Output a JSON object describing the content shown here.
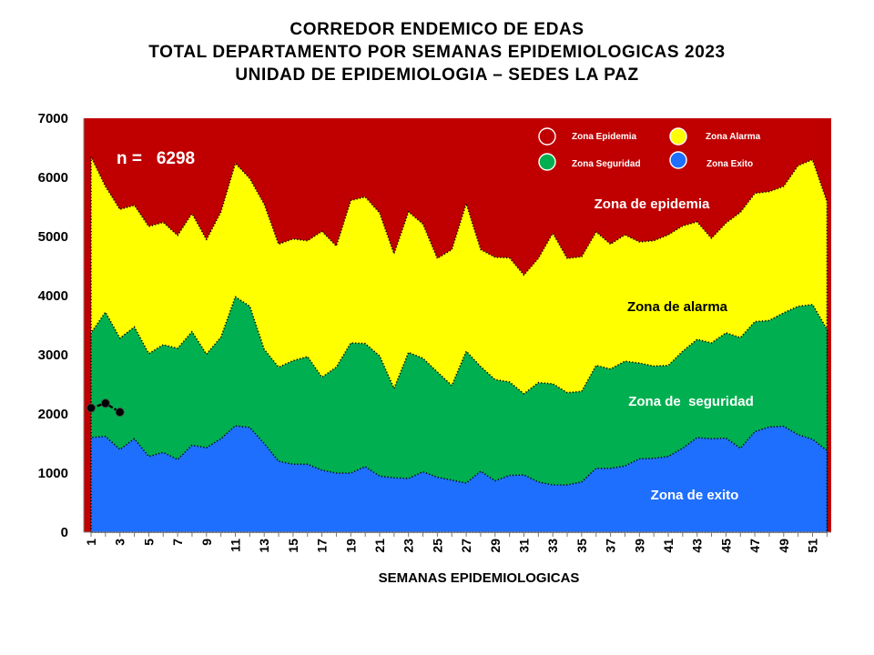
{
  "chart_data": {
    "type": "area",
    "title": [
      "CORREDOR ENDEMICO DE EDAS",
      "TOTAL DEPARTAMENTO POR SEMANAS EPIDEMIOLOGICAS 2023",
      "UNIDAD DE EPIDEMIOLOGIA – SEDES LA PAZ"
    ],
    "xlabel": "SEMANAS EPIDEMIOLOGICAS",
    "ylabel": "",
    "ylim": [
      0,
      7000
    ],
    "yticks": [
      0,
      1000,
      2000,
      3000,
      4000,
      5000,
      6000,
      7000
    ],
    "x": [
      1,
      2,
      3,
      4,
      5,
      6,
      7,
      8,
      9,
      10,
      11,
      12,
      13,
      14,
      15,
      16,
      17,
      18,
      19,
      20,
      21,
      22,
      23,
      24,
      25,
      26,
      27,
      28,
      29,
      30,
      31,
      32,
      33,
      34,
      35,
      36,
      37,
      38,
      39,
      40,
      41,
      42,
      43,
      44,
      45,
      46,
      47,
      48,
      49,
      50,
      51,
      52
    ],
    "xtick_labels": [
      "1",
      "3",
      "5",
      "7",
      "9",
      "11",
      "13",
      "15",
      "17",
      "19",
      "21",
      "23",
      "25",
      "27",
      "29",
      "31",
      "33",
      "35",
      "37",
      "39",
      "41",
      "43",
      "45",
      "47",
      "49",
      "51"
    ],
    "series": [
      {
        "name": "Zona de exito",
        "color": "#1f6fff",
        "values": [
          1600,
          1620,
          1400,
          1580,
          1280,
          1350,
          1230,
          1470,
          1430,
          1580,
          1800,
          1770,
          1500,
          1200,
          1150,
          1150,
          1050,
          1000,
          1000,
          1110,
          950,
          920,
          910,
          1020,
          930,
          880,
          830,
          1030,
          870,
          960,
          970,
          850,
          800,
          800,
          850,
          1080,
          1080,
          1120,
          1240,
          1250,
          1280,
          1420,
          1600,
          1580,
          1590,
          1420,
          1700,
          1780,
          1790,
          1650,
          1570,
          1380
        ]
      },
      {
        "name": "Zona de seguridad",
        "color": "#00b050",
        "values": [
          3370,
          3720,
          3280,
          3470,
          3020,
          3170,
          3110,
          3390,
          3010,
          3300,
          3980,
          3820,
          3090,
          2790,
          2900,
          2970,
          2620,
          2790,
          3200,
          3190,
          2980,
          2430,
          3040,
          2940,
          2710,
          2480,
          3060,
          2800,
          2580,
          2540,
          2340,
          2530,
          2510,
          2360,
          2380,
          2820,
          2760,
          2890,
          2860,
          2810,
          2820,
          3060,
          3260,
          3200,
          3370,
          3290,
          3560,
          3580,
          3710,
          3820,
          3850,
          3430
        ]
      },
      {
        "name": "Zona de alarma",
        "color": "#ffff00",
        "values": [
          6350,
          5850,
          5460,
          5530,
          5170,
          5240,
          5020,
          5390,
          4950,
          5420,
          6240,
          5980,
          5550,
          4870,
          4960,
          4930,
          5090,
          4840,
          5610,
          5670,
          5400,
          4710,
          5420,
          5210,
          4630,
          4780,
          5560,
          4780,
          4650,
          4640,
          4350,
          4630,
          5060,
          4630,
          4660,
          5080,
          4870,
          5030,
          4910,
          4930,
          5030,
          5180,
          5250,
          4970,
          5230,
          5410,
          5730,
          5760,
          5850,
          6200,
          6300,
          5590
        ]
      }
    ],
    "current_year": {
      "name": "2023",
      "x": [
        1,
        2,
        3
      ],
      "values": [
        2100,
        2180,
        2030
      ]
    },
    "legend": {
      "position": "top-right",
      "entries": [
        {
          "label": "Zona Epidemia",
          "color": "#c00000"
        },
        {
          "label": "Zona Alarma",
          "color": "#ffff00"
        },
        {
          "label": "Zona Seguridad",
          "color": "#00b050"
        },
        {
          "label": "Zona Exito",
          "color": "#1f6fff"
        }
      ]
    },
    "zone_labels": {
      "epidemia": "Zona de epidemia",
      "alarma": "Zona de alarma",
      "seguridad": "Zona de  seguridad",
      "exito": "Zona de exito"
    },
    "epidemia_color": "#c00000",
    "annotation": "n =   6298",
    "grid": false
  }
}
